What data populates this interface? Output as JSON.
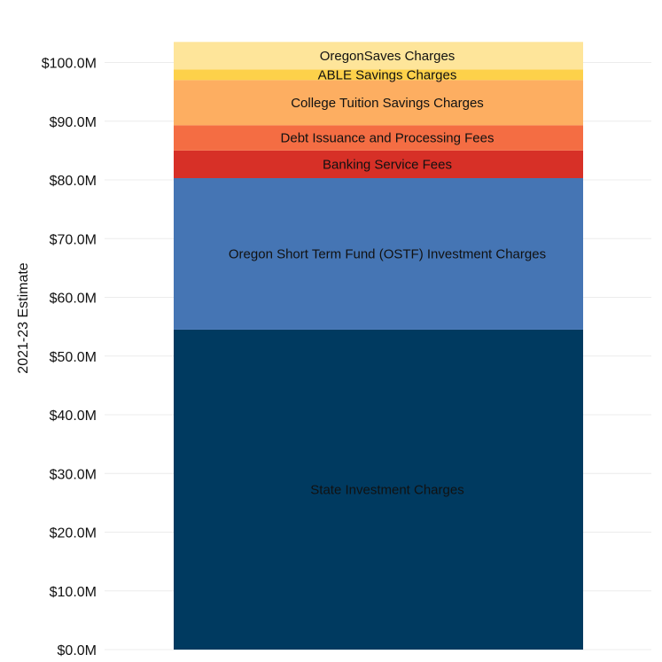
{
  "chart_data": {
    "type": "bar",
    "stacked": true,
    "categories": [
      ""
    ],
    "ylabel": "2021-23 Estimate",
    "ylim": [
      0,
      104
    ],
    "y_ticks": [
      0,
      10,
      20,
      30,
      40,
      50,
      60,
      70,
      80,
      90,
      100
    ],
    "y_tick_labels": [
      "$0.0M",
      "$10.0M",
      "$20.0M",
      "$30.0M",
      "$40.0M",
      "$50.0M",
      "$60.0M",
      "$70.0M",
      "$80.0M",
      "$90.0M",
      "$100.0M"
    ],
    "grid": true,
    "legend": "none",
    "series": [
      {
        "name": "State Investment Charges",
        "values": [
          54.5
        ],
        "color": "#003a60"
      },
      {
        "name": "Oregon Short Term Fund (OSTF) Investment Charges",
        "values": [
          25.8
        ],
        "color": "#4575b4"
      },
      {
        "name": "Banking Service Fees",
        "values": [
          4.7
        ],
        "color": "#d73027"
      },
      {
        "name": "Debt Issuance and Processing Fees",
        "values": [
          4.3
        ],
        "color": "#f46d43"
      },
      {
        "name": "College Tuition Savings Charges",
        "values": [
          7.7
        ],
        "color": "#fdae61"
      },
      {
        "name": "ABLE Savings Charges",
        "values": [
          1.8
        ],
        "color": "#fdd14a"
      },
      {
        "name": "OregonSaves Charges",
        "values": [
          4.7
        ],
        "color": "#fee59a"
      }
    ]
  }
}
